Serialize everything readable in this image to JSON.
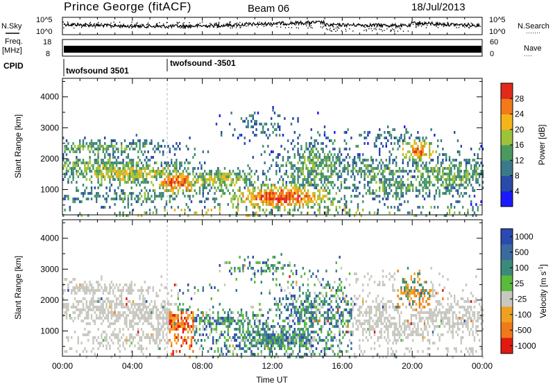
{
  "header": {
    "station": "Prince George (fitACF)",
    "beam": "Beam 06",
    "date": "18/Jul/2013"
  },
  "noise_panel": {
    "left_label": "N.Sky",
    "right_label": "N.Search",
    "right_dots": "·······",
    "tick_top": "10^5",
    "tick_bottom": "10^0"
  },
  "freq_panel": {
    "left_label_1": "Freq.",
    "left_label_2": "[MHz]",
    "tick_top": "18",
    "tick_bottom": "8",
    "right_tick_top": "60",
    "right_tick_bottom": "0",
    "right_label": "Nave",
    "right_dots": "····"
  },
  "cpid": {
    "label": "CPID",
    "segments": [
      {
        "name": "twofsound 3501",
        "start_hour": 0
      },
      {
        "name": "twofsound -3501",
        "start_hour": 6
      }
    ]
  },
  "chart_data": [
    {
      "type": "heatmap",
      "name": "power",
      "ylabel": "Slant Range [km]",
      "ylim": [
        180,
        4600
      ],
      "yticks": [
        1000,
        2000,
        3000,
        4000
      ],
      "xlim": [
        0,
        24
      ],
      "colorbar": {
        "label": "Power [dB]",
        "ticks": [
          "4",
          "8",
          "12",
          "16",
          "20",
          "24",
          "28"
        ],
        "colors": [
          "#1a1aff",
          "#2a4aa8",
          "#3b7a8a",
          "#4a9a60",
          "#9ec23a",
          "#f5b41a",
          "#f27a1a",
          "#e22a1a"
        ]
      }
    },
    {
      "type": "heatmap",
      "name": "velocity",
      "ylabel": "Slant Range [km]",
      "ylim": [
        180,
        4600
      ],
      "yticks": [
        1000,
        2000,
        3000,
        4000
      ],
      "xlim": [
        0,
        24
      ],
      "xlabel": "Time UT",
      "xticks": [
        "00:00",
        "04:00",
        "08:00",
        "12:00",
        "16:00",
        "20:00",
        "00:00"
      ],
      "colorbar": {
        "label": "Velocity [m s",
        "label_sup": "-1",
        "label_end": "]",
        "ticks": [
          "1000",
          "500",
          "100",
          "25",
          "-25",
          "-100",
          "-500",
          "-1000"
        ],
        "colors": [
          "#2a4ab0",
          "#3a6aa0",
          "#3a8a7a",
          "#5aba3a",
          "#c8c8c0",
          "#f0a020",
          "#f07a1a",
          "#e01a10"
        ]
      }
    }
  ]
}
